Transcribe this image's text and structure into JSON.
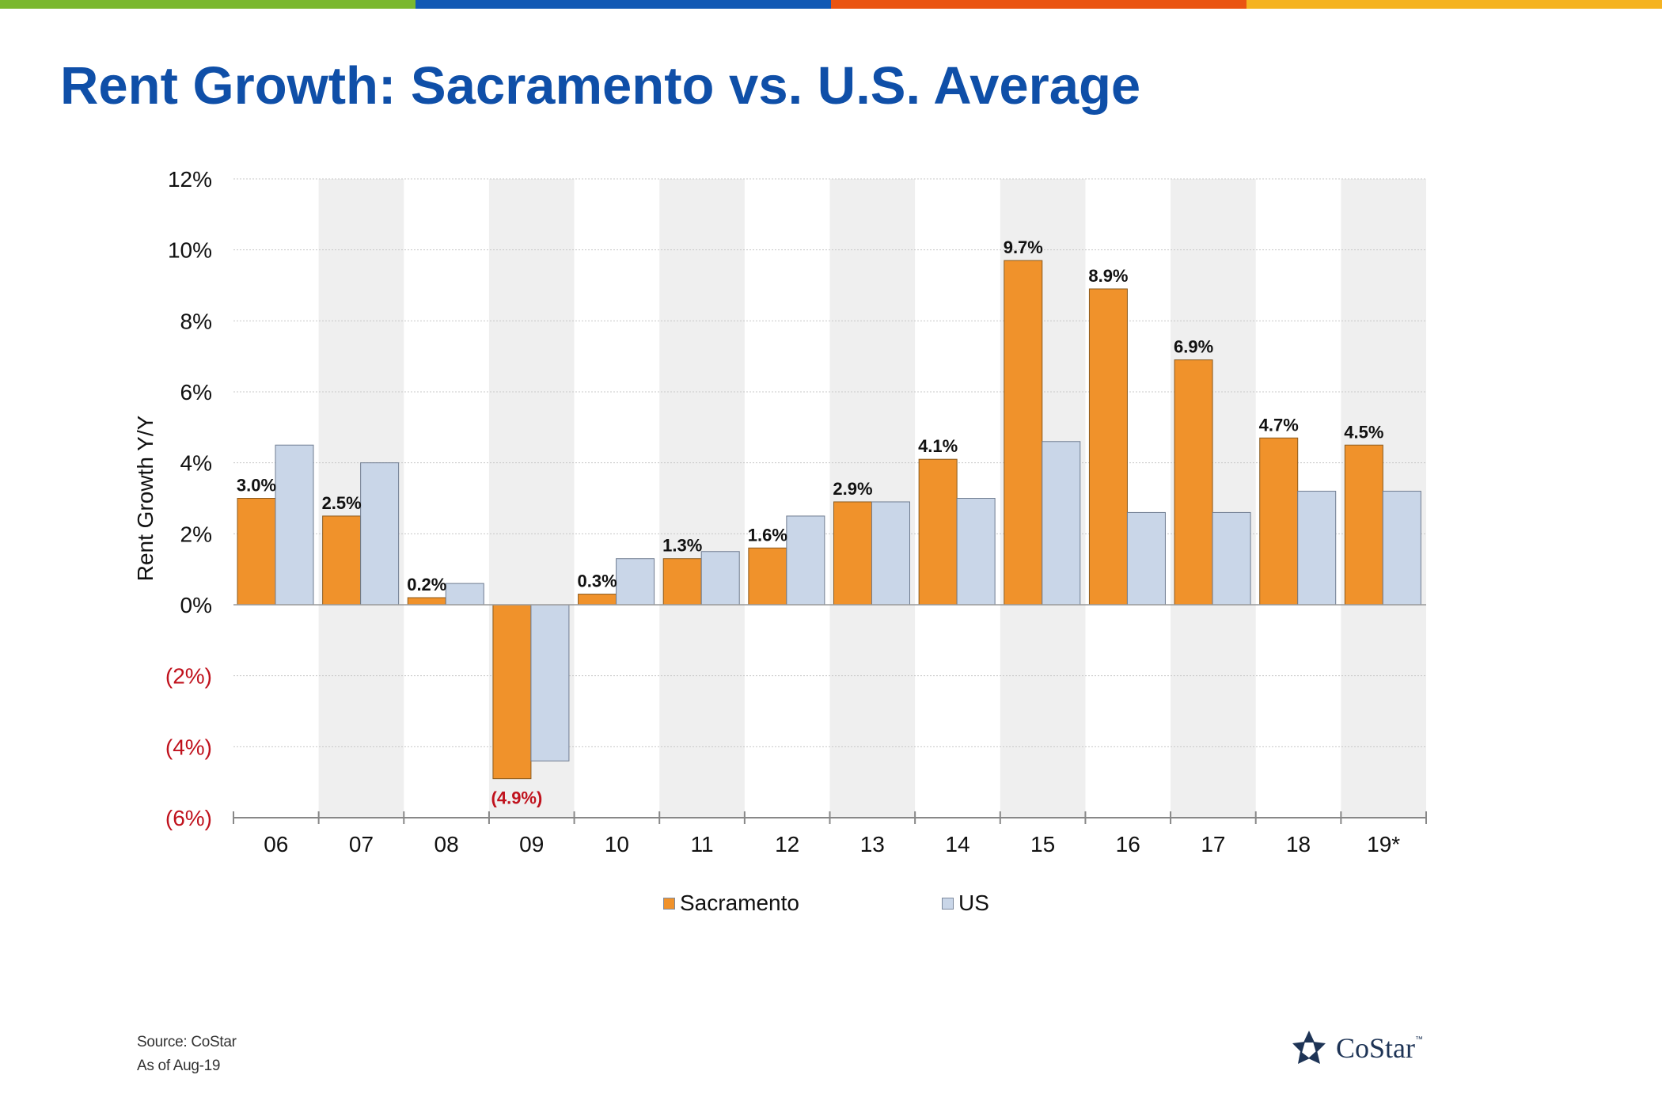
{
  "header": {
    "title": "Rent Growth: Sacramento vs. U.S. Average",
    "bar_colors": [
      "#7ab82e",
      "#1259b4",
      "#ea5412",
      "#f5b321"
    ]
  },
  "colors": {
    "title": "#0f4fa8",
    "sacramento": "#f0922b",
    "us": "#c9d6e8",
    "negative_label": "#c0121d",
    "band": "#efefef"
  },
  "chart_data": {
    "type": "bar",
    "title": "Rent Growth: Sacramento vs. U.S. Average",
    "xlabel": "",
    "ylabel": "Rent Growth Y/Y",
    "ylim": [
      -6,
      12
    ],
    "yticks": [
      12,
      10,
      8,
      6,
      4,
      2,
      0,
      -2,
      -4,
      -6
    ],
    "ytick_labels": [
      "12%",
      "10%",
      "8%",
      "6%",
      "4%",
      "2%",
      "0%",
      "(2%)",
      "(4%)",
      "(6%)"
    ],
    "categories": [
      "06",
      "07",
      "08",
      "09",
      "10",
      "11",
      "12",
      "13",
      "14",
      "15",
      "16",
      "17",
      "18",
      "19*"
    ],
    "series": [
      {
        "name": "Sacramento",
        "values": [
          3.0,
          2.5,
          0.2,
          -4.9,
          0.3,
          1.3,
          1.6,
          2.9,
          4.1,
          9.7,
          8.9,
          6.9,
          4.7,
          4.5
        ],
        "labels": [
          "3.0%",
          "2.5%",
          "0.2%",
          "(4.9%)",
          "0.3%",
          "1.3%",
          "1.6%",
          "2.9%",
          "4.1%",
          "9.7%",
          "8.9%",
          "6.9%",
          "4.7%",
          "4.5%"
        ]
      },
      {
        "name": "US",
        "values": [
          4.5,
          4.0,
          0.6,
          -4.4,
          1.3,
          1.5,
          2.5,
          2.9,
          3.0,
          4.6,
          2.6,
          2.6,
          3.2,
          3.2
        ]
      }
    ],
    "grid": true,
    "legend": "bottom-center"
  },
  "legend": {
    "sacramento": "Sacramento",
    "us": "US"
  },
  "footer": {
    "source": "Source: CoStar",
    "as_of": "As of Aug-19"
  },
  "logo": {
    "text": "CoStar",
    "tm": "™",
    "icon": "costar-star-icon"
  }
}
